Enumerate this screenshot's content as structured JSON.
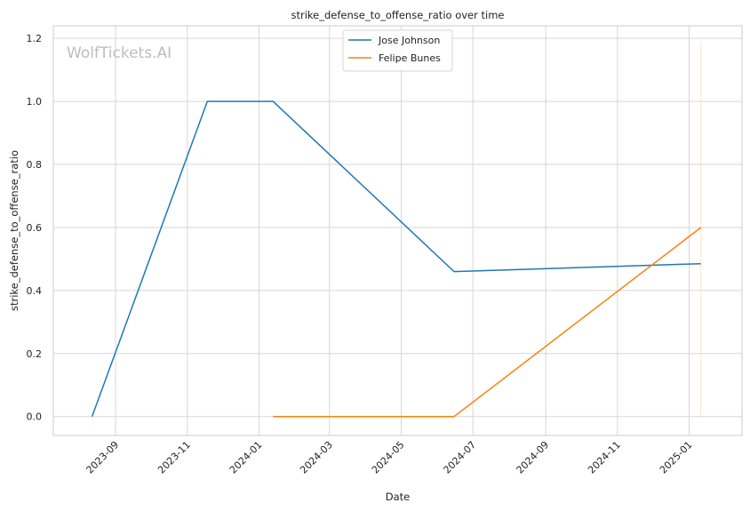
{
  "chart_data": {
    "type": "line",
    "title": "strike_defense_to_offense_ratio over time",
    "xlabel": "Date",
    "ylabel": "strike_defense_to_offense_ratio",
    "watermark": "WolfTickets.AI",
    "xlim": [
      "2023-07-10",
      "2025-02-15"
    ],
    "ylim": [
      -0.06,
      1.24
    ],
    "x_ticks": [
      "2023-09",
      "2023-11",
      "2024-01",
      "2024-03",
      "2024-05",
      "2024-07",
      "2024-09",
      "2024-11",
      "2025-01"
    ],
    "y_ticks": [
      "0.0",
      "0.2",
      "0.4",
      "0.6",
      "0.8",
      "1.0",
      "1.2"
    ],
    "grid": true,
    "legend_position": "top-center",
    "series": [
      {
        "name": "Jose Johnson",
        "color": "#1f77b4",
        "x": [
          "2023-08-12",
          "2023-11-18",
          "2024-01-13",
          "2024-06-15",
          "2025-01-11"
        ],
        "y": [
          0.0,
          1.0,
          1.0,
          0.46,
          0.485
        ]
      },
      {
        "name": "Felipe Bunes",
        "color": "#ff7f0e",
        "x": [
          "2024-01-13",
          "2024-06-15",
          "2025-01-11"
        ],
        "y": [
          0.0,
          0.0,
          0.6
        ]
      }
    ]
  }
}
